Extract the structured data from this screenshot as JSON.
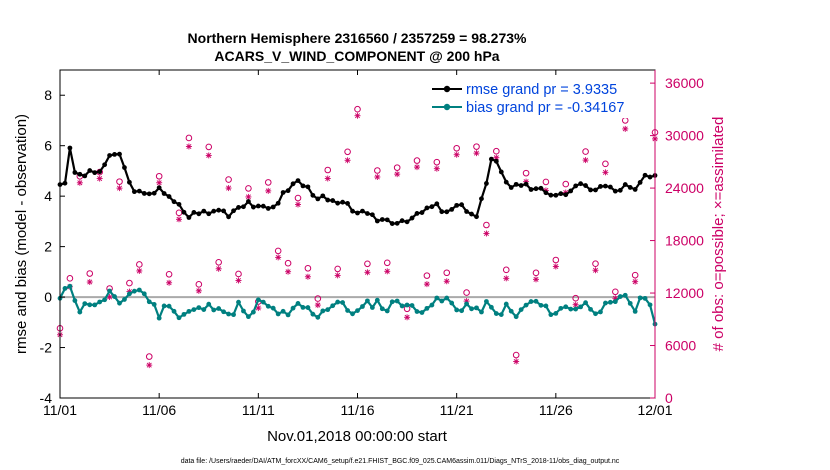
{
  "chart_data": {
    "type": "line",
    "title": "Northern Hemisphere 2316560 / 2357259 = 98.273%",
    "subtitle": "ACARS_V_WIND_COMPONENT @ 200 hPa",
    "xlabel": "Nov.01,2018 00:00:00 start",
    "ylabel": "rmse and bias (model - observation)",
    "y2label": "# of obs: o=possible; ×=assimilated",
    "footer": "data file: /Users/raeder/DAI/ATM_forcXX/CAM6_setup/f.e21.FHIST_BGC.f09_025.CAM6assim.011/Diags_NTrS_2018-11/obs_diag_output.nc",
    "xlim": [
      0,
      30
    ],
    "ylim": [
      -4,
      9
    ],
    "y2lim": [
      0,
      37500
    ],
    "x_ticks": [
      {
        "value": 0,
        "label": "11/01"
      },
      {
        "value": 5,
        "label": "11/06"
      },
      {
        "value": 10,
        "label": "11/11"
      },
      {
        "value": 15,
        "label": "11/16"
      },
      {
        "value": 20,
        "label": "11/21"
      },
      {
        "value": 25,
        "label": "11/26"
      },
      {
        "value": 30,
        "label": "12/01"
      }
    ],
    "y_ticks": [
      -4,
      -2,
      0,
      2,
      4,
      6,
      8
    ],
    "y2_ticks": [
      {
        "value": 0,
        "label": "0"
      },
      {
        "value": 6000,
        "label": "6000"
      },
      {
        "value": 12000,
        "label": "12000"
      },
      {
        "value": 18000,
        "label": "18000"
      },
      {
        "value": 24000,
        "label": "24000"
      },
      {
        "value": 30000,
        "label": "30000"
      },
      {
        "value": 36000,
        "label": "36000"
      }
    ],
    "legend_position": "top-right",
    "colors": {
      "rmse": "#000000",
      "bias": "#008080",
      "obs": "#cc0066",
      "bias_ref": "#aaaaaa"
    },
    "series": [
      {
        "name": "rmse grand pr = 3.9335",
        "key": "rmse",
        "text_color": "#0044dd",
        "anchors": [
          [
            0,
            4.5
          ],
          [
            0.3,
            4.6
          ],
          [
            0.5,
            5.8
          ],
          [
            0.8,
            4.8
          ],
          [
            1.5,
            4.9
          ],
          [
            2.0,
            5.0
          ],
          [
            2.5,
            5.5
          ],
          [
            3.0,
            5.7
          ],
          [
            3.5,
            4.5
          ],
          [
            4.0,
            4.1
          ],
          [
            4.5,
            4.0
          ],
          [
            5.0,
            4.4
          ],
          [
            5.5,
            3.9
          ],
          [
            6.0,
            3.6
          ],
          [
            6.5,
            3.2
          ],
          [
            7.0,
            3.4
          ],
          [
            7.5,
            3.3
          ],
          [
            8.0,
            3.5
          ],
          [
            8.5,
            3.3
          ],
          [
            9.0,
            3.6
          ],
          [
            9.5,
            3.8
          ],
          [
            10.0,
            3.5
          ],
          [
            10.5,
            3.5
          ],
          [
            11.0,
            3.8
          ],
          [
            11.5,
            4.3
          ],
          [
            12.0,
            4.6
          ],
          [
            12.5,
            4.3
          ],
          [
            13.0,
            4.0
          ],
          [
            13.5,
            3.8
          ],
          [
            14.0,
            3.7
          ],
          [
            14.5,
            3.6
          ],
          [
            15.0,
            3.4
          ],
          [
            15.5,
            3.2
          ],
          [
            16.0,
            3.1
          ],
          [
            17.0,
            3.0
          ],
          [
            17.5,
            3.1
          ],
          [
            18.0,
            3.2
          ],
          [
            18.5,
            3.5
          ],
          [
            19.0,
            3.6
          ],
          [
            19.5,
            3.3
          ],
          [
            20.0,
            3.6
          ],
          [
            20.5,
            3.5
          ],
          [
            21.0,
            3.2
          ],
          [
            21.5,
            4.5
          ],
          [
            21.8,
            5.6
          ],
          [
            22.3,
            4.8
          ],
          [
            22.8,
            4.4
          ],
          [
            23.3,
            4.5
          ],
          [
            23.8,
            4.3
          ],
          [
            24.3,
            4.4
          ],
          [
            24.8,
            3.9
          ],
          [
            25.3,
            4.0
          ],
          [
            25.8,
            4.3
          ],
          [
            26.3,
            4.4
          ],
          [
            27.0,
            4.3
          ],
          [
            27.5,
            4.4
          ],
          [
            28.0,
            4.2
          ],
          [
            28.5,
            4.4
          ],
          [
            29.0,
            4.2
          ],
          [
            29.5,
            4.8
          ],
          [
            30.0,
            4.7
          ]
        ]
      },
      {
        "name": "bias grand pr = -0.34167",
        "key": "bias",
        "text_color": "#0044dd",
        "anchors": [
          [
            0,
            -0.1
          ],
          [
            0.5,
            0.5
          ],
          [
            1.0,
            -0.5
          ],
          [
            1.5,
            -0.2
          ],
          [
            2.0,
            -0.3
          ],
          [
            2.5,
            0.2
          ],
          [
            3.0,
            -0.4
          ],
          [
            3.5,
            0.2
          ],
          [
            4.0,
            0.3
          ],
          [
            4.5,
            -0.1
          ],
          [
            5.0,
            -0.7
          ],
          [
            5.5,
            -0.2
          ],
          [
            6.0,
            -0.8
          ],
          [
            6.5,
            -0.6
          ],
          [
            7.0,
            -0.5
          ],
          [
            7.5,
            -0.4
          ],
          [
            8.0,
            -0.3
          ],
          [
            8.5,
            -0.8
          ],
          [
            9.0,
            -0.3
          ],
          [
            9.5,
            -0.9
          ],
          [
            10.0,
            -0.2
          ],
          [
            10.5,
            -0.4
          ],
          [
            11.0,
            -0.6
          ],
          [
            11.5,
            -0.8
          ],
          [
            12.0,
            -0.3
          ],
          [
            12.5,
            -0.5
          ],
          [
            13.0,
            -0.7
          ],
          [
            13.5,
            -0.4
          ],
          [
            14.0,
            -0.2
          ],
          [
            14.5,
            -0.5
          ],
          [
            15.0,
            -0.6
          ],
          [
            15.5,
            -0.3
          ],
          [
            16.0,
            -0.2
          ],
          [
            16.5,
            -0.5
          ],
          [
            17.0,
            -0.1
          ],
          [
            17.5,
            -0.3
          ],
          [
            18.0,
            -0.6
          ],
          [
            18.5,
            -0.3
          ],
          [
            19.0,
            -0.2
          ],
          [
            19.5,
            -0.1
          ],
          [
            20.0,
            -0.5
          ],
          [
            20.5,
            -0.3
          ],
          [
            21.0,
            -0.6
          ],
          [
            21.5,
            -0.3
          ],
          [
            22.0,
            -0.7
          ],
          [
            22.5,
            -0.4
          ],
          [
            23.0,
            -0.8
          ],
          [
            23.5,
            -0.3
          ],
          [
            24.0,
            -0.2
          ],
          [
            24.5,
            -0.5
          ],
          [
            25.0,
            -0.6
          ],
          [
            25.5,
            -0.4
          ],
          [
            26.0,
            -0.4
          ],
          [
            26.5,
            -0.3
          ],
          [
            27.0,
            -0.5
          ],
          [
            27.5,
            -0.4
          ],
          [
            28.0,
            -0.3
          ],
          [
            28.5,
            0.1
          ],
          [
            29.0,
            -0.5
          ],
          [
            29.5,
            0.1
          ],
          [
            30.0,
            -0.9
          ]
        ]
      },
      {
        "name": "obs possible",
        "key": "obs",
        "anchors": [
          [
            0,
            8000
          ],
          [
            0.3,
            14000
          ],
          [
            0.7,
            13000
          ],
          [
            1.0,
            26500
          ],
          [
            1.5,
            15000
          ],
          [
            2.0,
            26000
          ],
          [
            2.5,
            12500
          ],
          [
            3.0,
            26000
          ],
          [
            3.5,
            12000
          ],
          [
            4.0,
            15000
          ],
          [
            4.5,
            5000
          ],
          [
            5.0,
            26000
          ],
          [
            5.3,
            12500
          ],
          [
            5.8,
            14500
          ],
          [
            6.3,
            30000
          ],
          [
            6.6,
            31500
          ],
          [
            7.0,
            13000
          ],
          [
            7.5,
            29500
          ],
          [
            8.0,
            15000
          ],
          [
            8.5,
            26000
          ],
          [
            9.0,
            14000
          ],
          [
            9.5,
            24000
          ],
          [
            10.0,
            12000
          ],
          [
            10.5,
            26000
          ],
          [
            11.0,
            15500
          ],
          [
            11.5,
            14000
          ],
          [
            12.0,
            24000
          ],
          [
            12.5,
            15000
          ],
          [
            13.0,
            10000
          ],
          [
            13.5,
            27000
          ],
          [
            14.0,
            15000
          ],
          [
            14.5,
            28000
          ],
          [
            15.0,
            32500
          ],
          [
            15.5,
            16000
          ],
          [
            16.0,
            27000
          ],
          [
            16.5,
            14000
          ],
          [
            17.0,
            26500
          ],
          [
            17.5,
            11000
          ],
          [
            18.0,
            27000
          ],
          [
            18.5,
            14500
          ],
          [
            19.0,
            28000
          ],
          [
            19.5,
            13500
          ],
          [
            20.0,
            29000
          ],
          [
            20.5,
            12500
          ],
          [
            21.0,
            30000
          ],
          [
            21.5,
            18500
          ],
          [
            22.0,
            29000
          ],
          [
            22.5,
            13500
          ],
          [
            23.0,
            5000
          ],
          [
            23.5,
            26500
          ],
          [
            24.0,
            14000
          ],
          [
            24.5,
            25000
          ],
          [
            25.0,
            15000
          ],
          [
            25.5,
            24000
          ],
          [
            26.0,
            12500
          ],
          [
            26.5,
            29000
          ],
          [
            27.0,
            15500
          ],
          [
            27.5,
            28000
          ],
          [
            28.0,
            13500
          ],
          [
            28.5,
            32000
          ],
          [
            29.0,
            13500
          ],
          [
            29.5,
            34500
          ],
          [
            30.0,
            29000
          ]
        ]
      }
    ]
  }
}
